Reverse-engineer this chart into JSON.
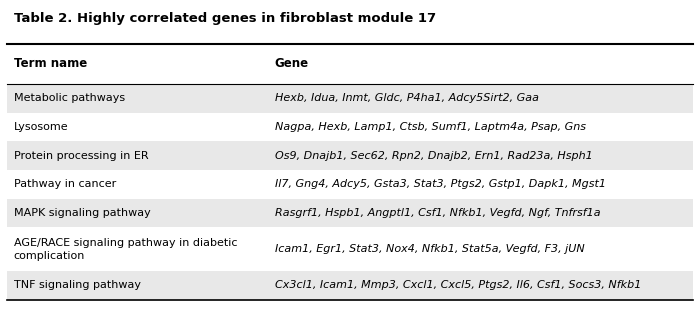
{
  "title": "Table 2. Highly correlated genes in fibroblast module 17",
  "col_headers": [
    "Term name",
    "Gene"
  ],
  "rows": [
    [
      "Metabolic pathways",
      "Hexb, Idua, Inmt, Gldc, P4ha1, Adcy5Sirt2, Gaa"
    ],
    [
      "Lysosome",
      "Nagpa, Hexb, Lamp1, Ctsb, Sumf1, Laptm4a, Psap, Gns"
    ],
    [
      "Protein processing in ER",
      "Os9, Dnajb1, Sec62, Rpn2, Dnajb2, Ern1, Rad23a, Hsph1"
    ],
    [
      "Pathway in cancer",
      "Il7, Gng4, Adcy5, Gsta3, Stat3, Ptgs2, Gstp1, Dapk1, Mgst1"
    ],
    [
      "MAPK signaling pathway",
      "Rasgrf1, Hspb1, Angptl1, Csf1, Nfkb1, Vegfd, Ngf, Tnfrsf1a"
    ],
    [
      "AGE/RACE signaling pathway in diabetic\ncomplication",
      "Icam1, Egr1, Stat3, Nox4, Nfkb1, Stat5a, Vegfd, F3, jUN"
    ],
    [
      "TNF signaling pathway",
      "Cx3cl1, Icam1, Mmp3, Cxcl1, Cxcl5, Ptgs2, Il6, Csf1, Socs3, Nfkb1"
    ]
  ],
  "shaded_rows": [
    0,
    2,
    4,
    6
  ],
  "shade_color": "#e8e8e8",
  "white_color": "#ffffff",
  "title_fontsize": 9.5,
  "header_fontsize": 8.5,
  "cell_fontsize": 8,
  "col_split": 0.38,
  "background_color": "#ffffff"
}
